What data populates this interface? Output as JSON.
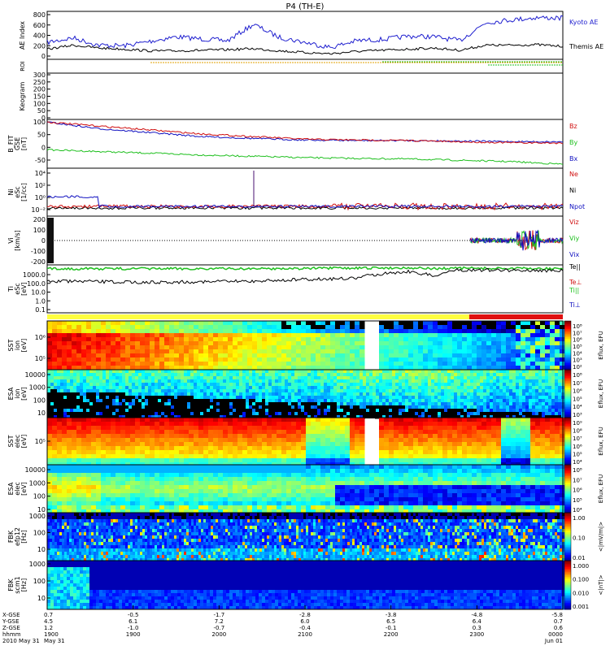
{
  "title": "P4 (TH-E)",
  "panels": {
    "ae": {
      "ylabel": "AE Index",
      "yticks": [
        "800",
        "600",
        "400",
        "200",
        "0"
      ],
      "series": [
        {
          "name": "Kyoto AE",
          "color": "#1f1fcf"
        },
        {
          "name": "Themis AE",
          "color": "#000000"
        }
      ]
    },
    "roi": {
      "ylabel": "ROI"
    },
    "keogram": {
      "ylabel": "Keogram",
      "yticks": [
        "300",
        "250",
        "200",
        "150",
        "100",
        "50",
        "0"
      ]
    },
    "bfield": {
      "ylabel_lines": [
        "B_FIT",
        "GSE",
        "[nT]"
      ],
      "yticks": [
        "100",
        "50",
        "0",
        "-50"
      ],
      "series": [
        {
          "name": "Bz",
          "color": "#d01010"
        },
        {
          "name": "By",
          "color": "#20c020"
        },
        {
          "name": "Bx",
          "color": "#1010c0"
        }
      ]
    },
    "density": {
      "ylabel_lines": [
        "Ni",
        "eSc",
        "[1/cc]"
      ],
      "yticks": [
        "10⁴",
        "10²",
        "10⁰",
        "10⁻²"
      ],
      "series": [
        {
          "name": "Ne",
          "color": "#d01010"
        },
        {
          "name": "Ni",
          "color": "#000000"
        },
        {
          "name": "Npot",
          "color": "#1010c0"
        }
      ]
    },
    "velocity": {
      "ylabel_lines": [
        "Vi",
        "[km/s]"
      ],
      "yticks": [
        "200",
        "100",
        "0",
        "-100",
        "-200"
      ],
      "series": [
        {
          "name": "Viz",
          "color": "#d01010"
        },
        {
          "name": "Viy",
          "color": "#20c020"
        },
        {
          "name": "Vix",
          "color": "#1010c0"
        }
      ]
    },
    "temperature": {
      "ylabel_lines": [
        "Ti",
        "eSc",
        "[eV]"
      ],
      "yticks": [
        "1000.0",
        "100.0",
        "10.0",
        "1.0",
        "0.1"
      ],
      "series": [
        {
          "name": "Te||",
          "color": "#000000"
        },
        {
          "name": "Te⊥",
          "color": "#d01010"
        },
        {
          "name": "Ti||",
          "color": "#20c020"
        },
        {
          "name": "Ti⊥",
          "color": "#1010c0"
        }
      ]
    },
    "spec1": {
      "ylabel_lines": [
        "SST",
        "ion",
        "[eV]"
      ],
      "yticks": [
        "10⁶",
        "10⁵"
      ],
      "cbar_label": "Eflux, EFU",
      "cbar_ticks": [
        "10⁸",
        "10⁷",
        "10⁶",
        "10⁵",
        "10⁴",
        "10³",
        "10²"
      ]
    },
    "spec2": {
      "ylabel_lines": [
        "ESA",
        "ion",
        "[eV]"
      ],
      "yticks": [
        "10000",
        "1000",
        "100",
        "10"
      ],
      "cbar_label": "Eflux, EFU",
      "cbar_ticks": [
        "10⁸",
        "10⁷",
        "10⁶",
        "10⁵",
        "10⁴",
        "10³"
      ]
    },
    "spec3": {
      "ylabel_lines": [
        "SST",
        "elec",
        "[eV]"
      ],
      "yticks": [
        "10⁵"
      ],
      "cbar_label": "Eflux, EFU",
      "cbar_ticks": [
        "10⁹",
        "10⁸",
        "10⁷",
        "10⁶",
        "10⁵",
        "10⁴"
      ]
    },
    "spec4": {
      "ylabel_lines": [
        "ESA",
        "elec",
        "[eV]"
      ],
      "yticks": [
        "10000",
        "1000",
        "100",
        "10"
      ],
      "cbar_label": "Eflux, EFU",
      "cbar_ticks": [
        "10⁸",
        "10⁷",
        "10⁶",
        "10⁵",
        "10⁴"
      ]
    },
    "fbk1": {
      "ylabel_lines": [
        "FBK",
        "efp12",
        "[Hz]"
      ],
      "yticks": [
        "1000",
        "100",
        "10"
      ],
      "cbar_label": "<|mV/m|>",
      "cbar_ticks": [
        "1.00",
        "0.10",
        "0.01"
      ]
    },
    "fbk2": {
      "ylabel_lines": [
        "FBK",
        "scm1",
        "[Hz]"
      ],
      "yticks": [
        "1000",
        "100",
        "10"
      ],
      "cbar_label": "<|nT|>",
      "cbar_ticks": [
        "1.000",
        "0.100",
        "0.010",
        "0.001"
      ]
    }
  },
  "xaxis": {
    "row_labels": [
      "X-GSE",
      "Y-GSE",
      "Z-GSE",
      "hhmm",
      "2010 May 31"
    ],
    "ticks": [
      {
        "x": "0.7",
        "y": "4.5",
        "z": "1.2",
        "hhmm": "1900",
        "date": "May 31"
      },
      {
        "x": "-0.5",
        "y": "6.1",
        "z": "-1.0",
        "hhmm": "1900",
        "date": ""
      },
      {
        "x": "-1.7",
        "y": "7.2",
        "z": "-0.7",
        "hhmm": "2000",
        "date": ""
      },
      {
        "x": "-2.8",
        "y": "6.0",
        "z": "-0.4",
        "hhmm": "2100",
        "date": ""
      },
      {
        "x": "-3.8",
        "y": "6.5",
        "z": "-0.1",
        "hhmm": "2200",
        "date": ""
      },
      {
        "x": "-4.8",
        "y": "6.4",
        "z": "0.3",
        "hhmm": "2300",
        "date": ""
      },
      {
        "x": "-5.8",
        "y": "0.7",
        "z": "0.6",
        "hhmm": "0000",
        "date": "Jun 01"
      }
    ]
  },
  "chart_data": [
    {
      "type": "line",
      "title": "P4 (TH-E)",
      "ylabel": "AE Index",
      "ylim": [
        0,
        850
      ],
      "x": [
        0,
        0.05,
        0.1,
        0.15,
        0.2,
        0.25,
        0.3,
        0.35,
        0.4,
        0.45,
        0.5,
        0.55,
        0.6,
        0.65,
        0.7,
        0.75,
        0.8,
        0.85,
        0.9,
        0.95,
        1.0
      ],
      "series": [
        {
          "name": "Kyoto AE",
          "values": [
            300,
            380,
            250,
            240,
            320,
            400,
            360,
            330,
            620,
            390,
            300,
            210,
            330,
            350,
            410,
            400,
            330,
            650,
            700,
            740,
            730
          ]
        },
        {
          "name": "Themis AE",
          "values": [
            180,
            250,
            200,
            180,
            150,
            150,
            160,
            170,
            190,
            150,
            120,
            100,
            140,
            160,
            180,
            200,
            160,
            250,
            250,
            260,
            230
          ]
        }
      ]
    },
    {
      "type": "line",
      "ylabel": "B_FIT GSE [nT]",
      "ylim": [
        -75,
        110
      ],
      "x": [
        0,
        0.1,
        0.2,
        0.3,
        0.4,
        0.5,
        0.6,
        0.7,
        0.8,
        0.9,
        1.0
      ],
      "series": [
        {
          "name": "Bz",
          "values": [
            100,
            85,
            70,
            55,
            45,
            35,
            32,
            30,
            25,
            22,
            20
          ]
        },
        {
          "name": "By",
          "values": [
            -5,
            -12,
            -18,
            -25,
            -30,
            -35,
            -38,
            -40,
            -45,
            -50,
            -60
          ]
        },
        {
          "name": "Bx",
          "values": [
            100,
            75,
            60,
            45,
            38,
            32,
            30,
            30,
            28,
            26,
            25
          ]
        }
      ]
    },
    {
      "type": "line",
      "ylabel": "Vi [km/s]",
      "ylim": [
        -250,
        250
      ],
      "x": [
        0,
        0.2,
        0.4,
        0.6,
        0.8,
        0.85,
        0.9,
        0.95,
        1.0
      ],
      "series": [
        {
          "name": "Viz",
          "values": [
            0,
            0,
            0,
            0,
            0,
            10,
            80,
            -40,
            10
          ]
        },
        {
          "name": "Viy",
          "values": [
            0,
            0,
            0,
            0,
            0,
            5,
            60,
            -30,
            5
          ]
        },
        {
          "name": "Vix",
          "values": [
            0,
            0,
            0,
            0,
            0,
            0,
            30,
            -20,
            0
          ]
        }
      ]
    },
    {
      "type": "line",
      "ylabel": "Ti eSc [eV]",
      "ylim": [
        0.1,
        10000
      ],
      "x": [
        0,
        0.2,
        0.4,
        0.6,
        0.7,
        0.75,
        0.8,
        1.0
      ],
      "series": [
        {
          "name": "Te||",
          "values": [
            200,
            150,
            200,
            400,
            2000,
            600,
            3000,
            2500
          ]
        },
        {
          "name": "Ti||",
          "values": [
            4000,
            4000,
            4000,
            4500,
            5000,
            4000,
            4500,
            4000
          ]
        }
      ]
    }
  ]
}
